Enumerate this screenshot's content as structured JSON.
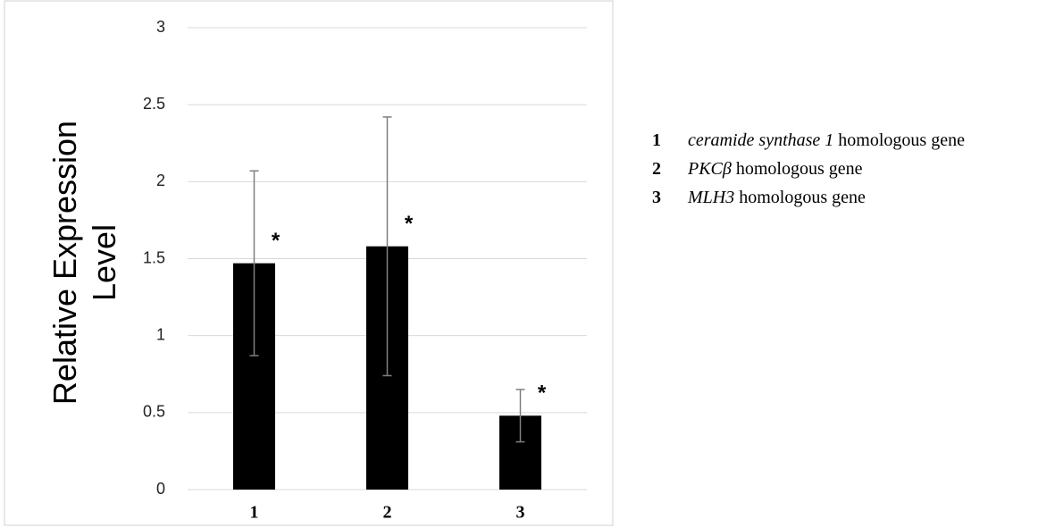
{
  "chart_data": {
    "type": "bar",
    "y_label": "Relative Expression Level",
    "categories": [
      "1",
      "2",
      "3"
    ],
    "values": [
      1.47,
      1.58,
      0.48
    ],
    "errors": [
      0.6,
      0.84,
      0.17
    ],
    "significance": [
      "*",
      "*",
      "*"
    ],
    "color": "#000000",
    "ylim": [
      0,
      3
    ],
    "yticks": [
      0,
      0.5,
      1,
      1.5,
      2,
      2.5,
      3
    ],
    "grid": true,
    "legend": [
      {
        "key": "1",
        "gene": "ceramide synthase 1",
        "suffix": "homologous gene"
      },
      {
        "key": "2",
        "gene": "PKCβ",
        "suffix": "homologous gene"
      },
      {
        "key": "3",
        "gene": "MLH3",
        "suffix": "homologous gene"
      }
    ]
  }
}
